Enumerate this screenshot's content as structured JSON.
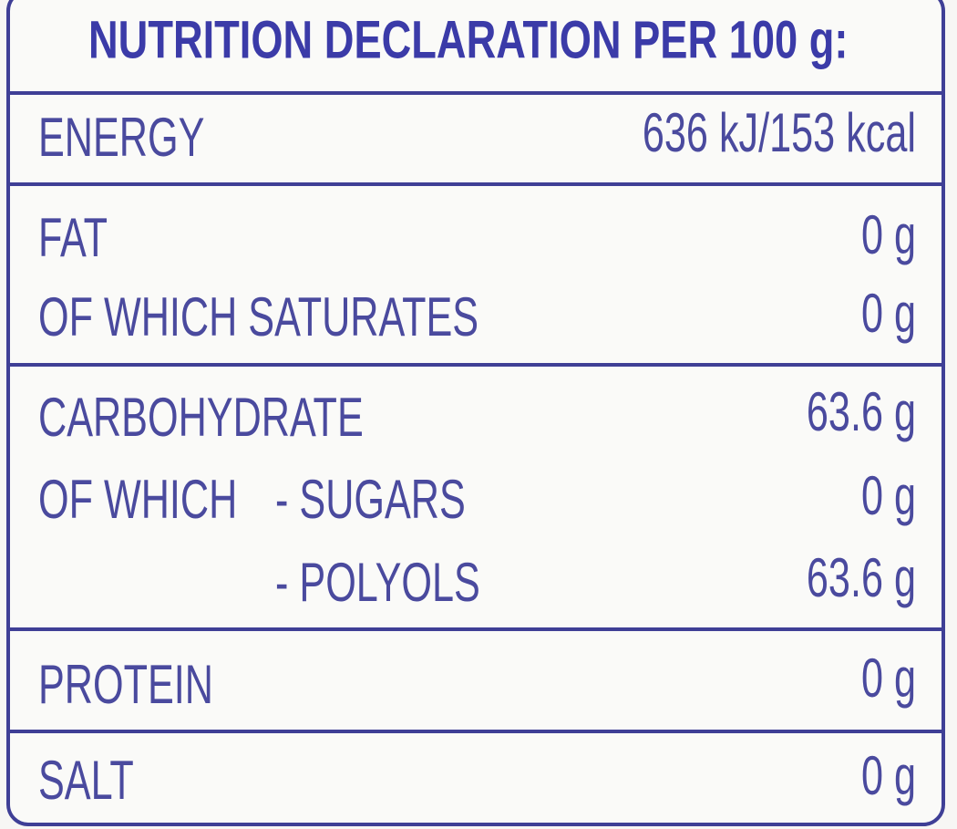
{
  "header": {
    "title": "NUTRITION DECLARATION PER 100 g:"
  },
  "table": {
    "rows": [
      {
        "label": "ENERGY",
        "value": "636 kJ/153 kcal"
      },
      {
        "label": "FAT",
        "value": "0 g"
      },
      {
        "label": "OF WHICH SATURATES",
        "value": "0 g"
      },
      {
        "label": "CARBOHYDRATE",
        "value": "63.6 g"
      },
      {
        "prefix": "OF WHICH",
        "label": "- SUGARS",
        "value": "0 g"
      },
      {
        "label": "- POLYOLS",
        "value": "63.6 g"
      },
      {
        "label": "PROTEIN",
        "value": "0 g"
      },
      {
        "label": "SALT",
        "value": "0 g"
      }
    ]
  }
}
